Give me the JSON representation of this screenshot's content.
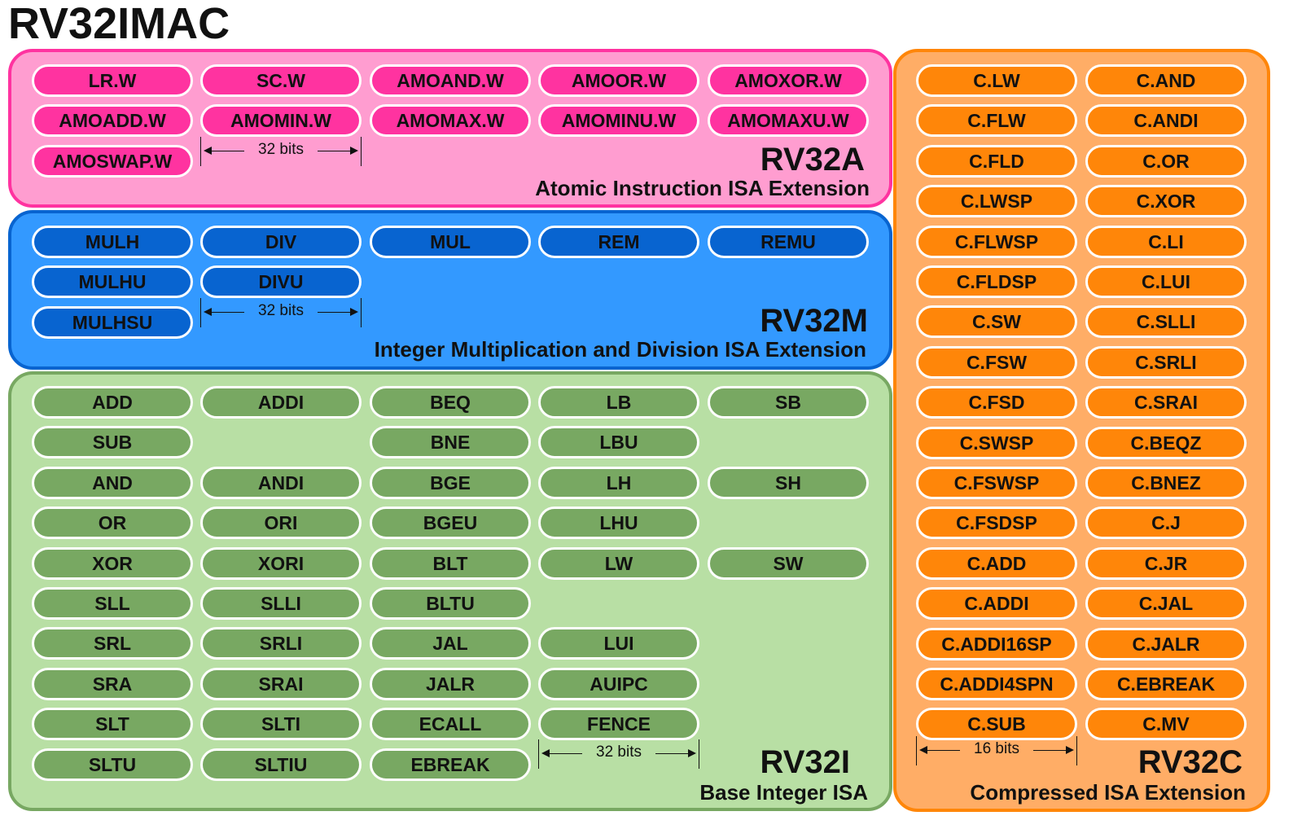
{
  "title": "RV32IMAC",
  "rv32a": {
    "name": "RV32A",
    "description": "Atomic Instruction ISA Extension",
    "width_label": "32 bits",
    "color": "#ff33a0",
    "background": "#ff9dd0",
    "instructions": [
      "LR.W",
      "SC.W",
      "AMOAND.W",
      "AMOOR.W",
      "AMOXOR.W",
      "AMOADD.W",
      "AMOMIN.W",
      "AMOMAX.W",
      "AMOMINU.W",
      "AMOMAXU.W",
      "AMOSWAP.W"
    ]
  },
  "rv32m": {
    "name": "RV32M",
    "description": "Integer Multiplication and Division ISA Extension",
    "width_label": "32 bits",
    "color": "#0864d0",
    "background": "#3399ff",
    "instructions": [
      "MULH",
      "DIV",
      "MUL",
      "REM",
      "REMU",
      "MULHU",
      "DIVU",
      "MULHSU"
    ]
  },
  "rv32i": {
    "name": "RV32I",
    "description": "Base Integer ISA",
    "width_label": "32 bits",
    "color": "#78a862",
    "background": "#b8dfa4",
    "instructions": [
      "ADD",
      "ADDI",
      "BEQ",
      "LB",
      "SB",
      "SUB",
      "BNE",
      "LBU",
      "AND",
      "ANDI",
      "BGE",
      "LH",
      "SH",
      "OR",
      "ORI",
      "BGEU",
      "LHU",
      "XOR",
      "XORI",
      "BLT",
      "LW",
      "SW",
      "SLL",
      "SLLI",
      "BLTU",
      "SRL",
      "SRLI",
      "JAL",
      "LUI",
      "SRA",
      "SRAI",
      "JALR",
      "AUIPC",
      "SLT",
      "SLTI",
      "ECALL",
      "FENCE",
      "SLTU",
      "SLTIU",
      "EBREAK"
    ]
  },
  "rv32c": {
    "name": "RV32C",
    "description": "Compressed ISA Extension",
    "width_label": "16 bits",
    "color": "#ff8609",
    "background": "#ffad66",
    "instructions": [
      "C.LW",
      "C.AND",
      "C.FLW",
      "C.ANDI",
      "C.FLD",
      "C.OR",
      "C.LWSP",
      "C.XOR",
      "C.FLWSP",
      "C.LI",
      "C.FLDSP",
      "C.LUI",
      "C.SW",
      "C.SLLI",
      "C.FSW",
      "C.SRLI",
      "C.FSD",
      "C.SRAI",
      "C.SWSP",
      "C.BEQZ",
      "C.FSWSP",
      "C.BNEZ",
      "C.FSDSP",
      "C.J",
      "C.ADD",
      "C.JR",
      "C.ADDI",
      "C.JAL",
      "C.ADDI16SP",
      "C.JALR",
      "C.ADDI4SPN",
      "C.EBREAK",
      "C.SUB",
      "C.MV"
    ]
  }
}
